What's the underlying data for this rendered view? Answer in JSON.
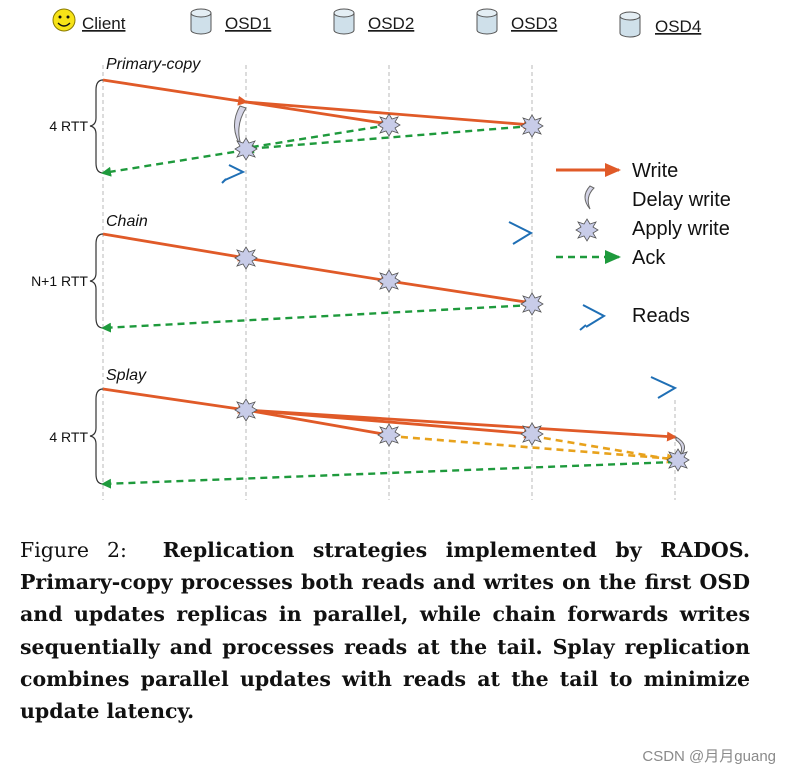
{
  "header": {
    "participants": [
      {
        "label": "Client",
        "icon": "smiley-icon"
      },
      {
        "label": "OSD1",
        "icon": "disk-icon"
      },
      {
        "label": "OSD2",
        "icon": "disk-icon"
      },
      {
        "label": "OSD3",
        "icon": "disk-icon"
      },
      {
        "label": "OSD4",
        "icon": "disk-icon"
      }
    ]
  },
  "sections": [
    {
      "title": "Primary-copy",
      "rtt": "4 RTT"
    },
    {
      "title": "Chain",
      "rtt": "N+1 RTT"
    },
    {
      "title": "Splay",
      "rtt": "4 RTT"
    }
  ],
  "legend": {
    "write": "Write",
    "delay_write": "Delay write",
    "apply_write": "Apply write",
    "ack": "Ack",
    "reads": "Reads"
  },
  "colors": {
    "write": "#e05a28",
    "ack": "#1e9a3c",
    "forward": "#e8a21c",
    "reads": "#1f6fb5",
    "disk": "#cfe0ea",
    "apply": "#c8cce8"
  },
  "caption": {
    "label": "Figure 2:",
    "text": "Replication strategies implemented by RADOS. Primary-copy processes both reads and writes on the first OSD and updates replicas in parallel, while chain forwards writes sequentially and processes reads at the tail. Splay replication combines parallel updates with reads at the tail to minimize update latency."
  },
  "watermark": "CSDN @月月guang"
}
